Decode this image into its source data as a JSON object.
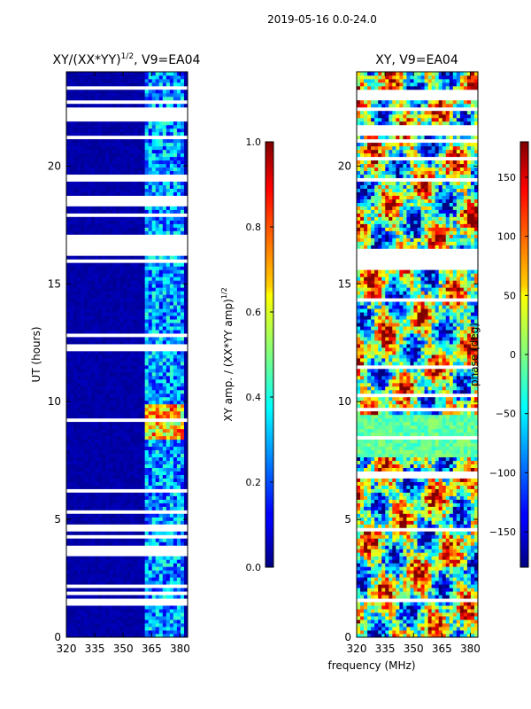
{
  "suptitle": "2019-05-16 0.0-24.0",
  "shared_xlabel": "frequency (MHz)",
  "colors": {
    "background_band": "#00008c",
    "gap": "#ffffff",
    "frame": "#000000"
  },
  "chart_data": [
    {
      "type": "heatmap",
      "title_main": "XY/(XX*YY)",
      "title_sup": "1/2",
      "title_suffix": ", V9=EA04",
      "ylabel": "UT (hours)",
      "xlabel": "",
      "xlim": [
        320,
        384
      ],
      "ylim": [
        0,
        24
      ],
      "xticks": [
        320,
        335,
        350,
        365,
        380
      ],
      "yticks": [
        0,
        5,
        10,
        15,
        20
      ],
      "colormap": "jet",
      "active_band_mhz": [
        360,
        382
      ],
      "data_gaps_ut_hours": [
        [
          16.1,
          16.5
        ],
        [
          16.5,
          17.0
        ],
        [
          21.9,
          22.4
        ]
      ],
      "colorbar": {
        "label": "XY amp. / (XX*YY amp)",
        "label_sup": "1/2",
        "range": [
          0,
          1
        ],
        "ticks": [
          "0.0",
          "0.2",
          "0.4",
          "0.6",
          "0.8",
          "1.0"
        ]
      }
    },
    {
      "type": "heatmap",
      "title": "XY, V9=EA04",
      "ylabel": "",
      "xlabel": "frequency (MHz)",
      "xlim": [
        320,
        384
      ],
      "ylim": [
        0,
        24
      ],
      "xticks": [
        320,
        335,
        350,
        365,
        380
      ],
      "yticks": [
        0,
        5,
        10,
        15,
        20
      ],
      "colormap": "jet",
      "data_gaps_ut_hours": [
        [
          15.6,
          16.5
        ],
        [
          22.8,
          23.1
        ]
      ],
      "colorbar": {
        "label": "phase (deg)",
        "range": [
          -180,
          180
        ],
        "ticks": [
          "150",
          "100",
          "50",
          "0",
          "−50",
          "−100",
          "−150"
        ],
        "tick_values": [
          150,
          100,
          50,
          0,
          -50,
          -100,
          -150
        ]
      }
    }
  ]
}
